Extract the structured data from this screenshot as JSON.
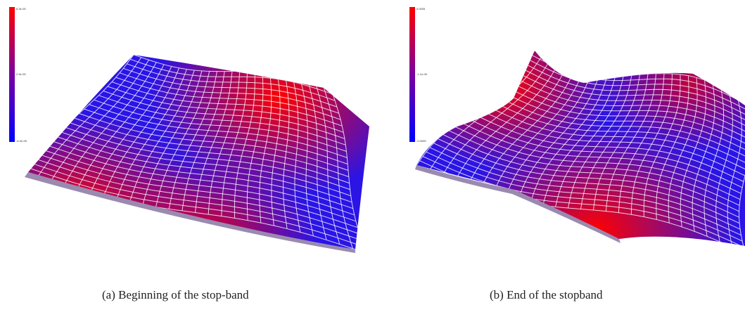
{
  "figure": {
    "panels": [
      {
        "id": "a",
        "caption": "(a)  Beginning of the stop-band",
        "colorbar": {
          "top_label": "6.3e-05",
          "mid_label": "2.9e-05",
          "bottom_label": "-6.3e-05",
          "top_color": "#ff0000",
          "bottom_color": "#0000ff"
        }
      },
      {
        "id": "b",
        "caption": "(b)  End of the stopband",
        "colorbar": {
          "top_label": "0.0005",
          "mid_label": "-1.1e-05",
          "bottom_label": "-0.0005",
          "top_color": "#ff0000",
          "bottom_color": "#0000ff"
        }
      }
    ]
  }
}
